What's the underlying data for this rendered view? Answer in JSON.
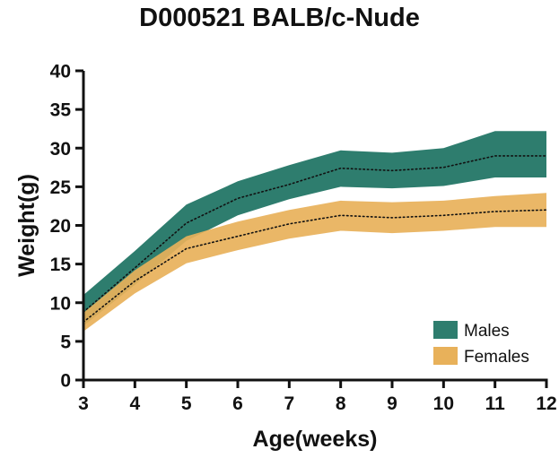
{
  "chart_data": {
    "type": "area",
    "title": "D000521 BALB/c-Nude",
    "xlabel": "Age(weeks)",
    "ylabel": "Weight(g)",
    "xlim": [
      3,
      12
    ],
    "ylim": [
      0,
      40
    ],
    "x_ticks": [
      3,
      4,
      5,
      6,
      7,
      8,
      9,
      10,
      11,
      12
    ],
    "y_ticks": [
      0,
      5,
      10,
      15,
      20,
      25,
      30,
      35,
      40
    ],
    "x_tick_labels": [
      "3",
      "4",
      "5",
      "6",
      "7",
      "8",
      "9",
      "10",
      "11",
      "12"
    ],
    "y_tick_labels": [
      "0",
      "5",
      "10",
      "15",
      "20",
      "25",
      "30",
      "35",
      "40"
    ],
    "legend_position": "bottom-right",
    "grid": false,
    "x": [
      3,
      4,
      5,
      6,
      7,
      8,
      9,
      10,
      11,
      12
    ],
    "series": [
      {
        "name": "Males",
        "color": "#2e7d6e",
        "mean": [
          8.8,
          14.5,
          20.3,
          23.5,
          25.3,
          27.4,
          27.1,
          27.5,
          29.0,
          29.0
        ],
        "upper": [
          11.0,
          16.7,
          22.7,
          25.7,
          27.8,
          29.7,
          29.4,
          30.0,
          32.2,
          32.2
        ],
        "lower": [
          7.0,
          12.3,
          18.0,
          21.3,
          23.4,
          25.0,
          24.8,
          25.1,
          26.2,
          26.2
        ]
      },
      {
        "name": "Females",
        "color": "#e8b15a",
        "mean": [
          7.5,
          12.8,
          17.0,
          18.6,
          20.2,
          21.3,
          21.0,
          21.3,
          21.8,
          22.0
        ],
        "upper": [
          8.7,
          14.2,
          18.6,
          20.5,
          22.0,
          23.2,
          23.0,
          23.2,
          23.8,
          24.2
        ],
        "lower": [
          6.3,
          11.2,
          15.1,
          16.8,
          18.3,
          19.3,
          19.0,
          19.3,
          19.8,
          19.8
        ]
      }
    ]
  }
}
